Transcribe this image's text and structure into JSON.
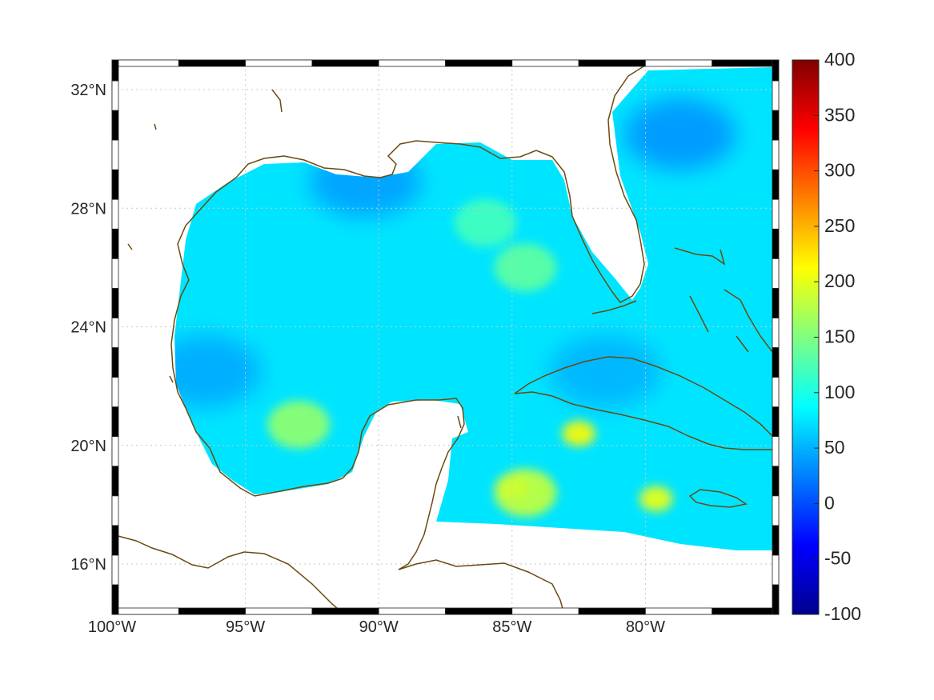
{
  "map": {
    "lon_range": [
      -100,
      -75
    ],
    "lat_range": [
      14.3,
      33
    ],
    "lon_ticks": [
      {
        "value": -100,
        "label": "100°W"
      },
      {
        "value": -95,
        "label": "95°W"
      },
      {
        "value": -90,
        "label": "90°W"
      },
      {
        "value": -85,
        "label": "85°W"
      },
      {
        "value": -80,
        "label": "80°W"
      }
    ],
    "lat_ticks": [
      {
        "value": 32,
        "label": "32°N"
      },
      {
        "value": 28,
        "label": "28°N"
      },
      {
        "value": 24,
        "label": "24°N"
      },
      {
        "value": 20,
        "label": "20°N"
      },
      {
        "value": 16,
        "label": "16°N"
      }
    ],
    "grid": true,
    "coastline_color": "#6b4a10",
    "frame_style": "alternating black/white border"
  },
  "colorbar": {
    "min": -100,
    "max": 400,
    "colormap": "jet",
    "ticks": [
      "400",
      "350",
      "300",
      "250",
      "200",
      "150",
      "100",
      "50",
      "0",
      "-50",
      "-100"
    ]
  },
  "field": {
    "background_value": 75,
    "hotspots": [
      {
        "lon": -85.0,
        "lat": 18.6,
        "value": 225
      },
      {
        "lon": -82.5,
        "lat": 20.4,
        "value": 215
      },
      {
        "lon": -79.6,
        "lat": 18.2,
        "value": 205
      },
      {
        "lon": -84.5,
        "lat": 18.4,
        "value": 185
      },
      {
        "lon": -93.0,
        "lat": 20.7,
        "value": 160
      },
      {
        "lon": -86.0,
        "lat": 27.5,
        "value": 120
      },
      {
        "lon": -84.5,
        "lat": 26.0,
        "value": 135
      }
    ],
    "lows": [
      {
        "lon": -96.5,
        "lat": 22.5,
        "value": 45
      },
      {
        "lon": -90.5,
        "lat": 28.9,
        "value": 40
      },
      {
        "lon": -78.7,
        "lat": 30.5,
        "value": 35
      },
      {
        "lon": -81.5,
        "lat": 22.5,
        "value": 50
      }
    ]
  }
}
